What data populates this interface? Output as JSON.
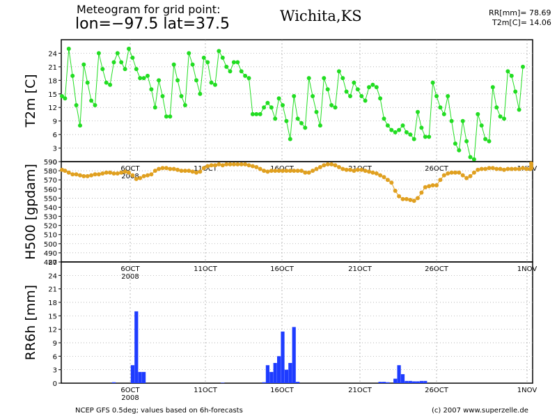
{
  "header": {
    "line1": "Meteogram for grid point:",
    "line2": "lon=−97.5  lat=37.5",
    "city": "Wichita,KS",
    "rr_total": "RR[mm]= 78.69",
    "t2m_mean": "T2m[C]= 14.06"
  },
  "footer": {
    "source": "NCEP GFS 0.5deg; values based on 6h-forecasts",
    "copyright": "(c) 2007 www.superzelle.de"
  },
  "colors": {
    "temperature": "#22dd22",
    "geopotential": "#e0a020",
    "precipitation": "#1e3cff",
    "frame": "#000000",
    "grid": "#9a9a9a"
  },
  "chart_data": [
    {
      "type": "line",
      "ylabel": "T2m [C]",
      "ylim": [
        0,
        27
      ],
      "yticks": [
        0,
        3,
        6,
        9,
        12,
        15,
        18,
        21,
        24
      ],
      "x_start": "2008-10-01 12UTC",
      "x_step_hours": 6,
      "date_ticks": [
        "6OCT",
        "11OCT",
        "16OCT",
        "21OCT",
        "26OCT",
        "1NOV"
      ],
      "year_label": "2008",
      "grid": true,
      "series": [
        {
          "values": [
            14.5,
            14,
            25,
            19,
            12.5,
            8,
            21.5,
            17.5,
            13.5,
            12.5,
            24,
            20.5,
            17.5,
            17,
            22,
            24,
            22,
            20.5,
            25,
            23,
            20.5,
            18.5,
            18.5,
            19,
            16,
            12,
            18,
            14.5,
            10,
            10,
            21.5,
            18,
            14.5,
            12.5,
            24,
            21.5,
            18,
            15,
            23,
            22,
            17.5,
            17,
            24.5,
            23,
            21,
            20,
            22,
            22,
            20,
            19,
            18.5,
            10.5,
            10.5,
            10.5,
            12,
            13,
            12,
            9.5,
            14,
            12.5,
            9,
            5,
            14.5,
            9.5,
            8.5,
            7.5,
            18.5,
            14.5,
            11,
            8,
            18.5,
            16,
            12.5,
            12,
            20,
            18.5,
            15.5,
            14.5,
            17.5,
            16,
            14.5,
            13.5,
            16.5,
            17,
            16.5,
            14,
            9.5,
            8,
            7,
            6.5,
            7,
            8,
            6.5,
            6,
            5,
            11,
            7.5,
            5.5,
            5.5,
            17.5,
            14.5,
            12,
            10.5,
            14.5,
            9,
            4,
            2.5,
            9,
            4.5,
            1,
            0.5,
            10.5,
            8,
            5,
            4.5,
            16.5,
            12,
            10,
            9.5,
            20,
            19,
            15.5,
            11.5,
            21
          ]
        }
      ]
    },
    {
      "type": "line",
      "ylabel": "H500 [gpdam]",
      "ylim": [
        480,
        590
      ],
      "yticks": [
        480,
        490,
        500,
        510,
        520,
        530,
        540,
        550,
        560,
        570,
        580,
        590
      ],
      "date_ticks": [
        "6OCT",
        "11OCT",
        "16OCT",
        "21OCT",
        "26OCT",
        "1NOV"
      ],
      "year_label": "2008",
      "grid": true,
      "series": [
        {
          "values": [
            581,
            580,
            578,
            576,
            576,
            575,
            574,
            574,
            575,
            576,
            576,
            577,
            578,
            578,
            577,
            577,
            578,
            579,
            578,
            575,
            571,
            572,
            574,
            575,
            576,
            580,
            582,
            583,
            583,
            582,
            582,
            581,
            580,
            580,
            580,
            579,
            578,
            579,
            583,
            585,
            586,
            586,
            587,
            586,
            587,
            587,
            587,
            587,
            587,
            587,
            586,
            585,
            584,
            582,
            580,
            579,
            580,
            580,
            580,
            580,
            580,
            580,
            580,
            580,
            580,
            578,
            578,
            580,
            582,
            584,
            586,
            587,
            587,
            586,
            584,
            582,
            581,
            581,
            580,
            581,
            581,
            580,
            579,
            578,
            577,
            575,
            573,
            570,
            567,
            558,
            552,
            549,
            549,
            548,
            547,
            550,
            556,
            562,
            563,
            564,
            564,
            570,
            575,
            577,
            578,
            578,
            578,
            575,
            572,
            574,
            578,
            581,
            582,
            582,
            583,
            583,
            582,
            582,
            581,
            582,
            582,
            582,
            582,
            583,
            582,
            582,
            583,
            583,
            585,
            588
          ]
        }
      ]
    },
    {
      "type": "bar",
      "ylabel": "RR6h [mm]",
      "ylim": [
        0,
        27
      ],
      "yticks": [
        0,
        3,
        6,
        9,
        12,
        15,
        18,
        21,
        24,
        27
      ],
      "date_ticks": [
        "6OCT",
        "11OCT",
        "16OCT",
        "21OCT",
        "26OCT",
        "1NOV"
      ],
      "year_label": "2008",
      "grid": true,
      "values": [
        0,
        0,
        0,
        0,
        0,
        0,
        0,
        0,
        0,
        0,
        0,
        0,
        0,
        0,
        0.2,
        0,
        0,
        0,
        0,
        4,
        16,
        2.5,
        2.5,
        0,
        0,
        0,
        0,
        0,
        0,
        0,
        0,
        0,
        0,
        0,
        0,
        0,
        0,
        0,
        0,
        0,
        0,
        0,
        0,
        0.1,
        0,
        0,
        0,
        0,
        0,
        0,
        0,
        0,
        0,
        0,
        0.2,
        4,
        2.5,
        4.5,
        6,
        11.5,
        3,
        4.5,
        12.5,
        0.3,
        0,
        0,
        0,
        0,
        0,
        0,
        0,
        0,
        0,
        0,
        0,
        0,
        0,
        0,
        0,
        0,
        0,
        0,
        0,
        0,
        0,
        0.3,
        0.3,
        0.2,
        0,
        1,
        4,
        2,
        0.5,
        0.5,
        0.4,
        0.4,
        0.5,
        0.5,
        0,
        0,
        0,
        0,
        0,
        0,
        0,
        0,
        0,
        0,
        0,
        0,
        0,
        0,
        0,
        0,
        0,
        0,
        0,
        0,
        0,
        0,
        0,
        0,
        0,
        0,
        0,
        0,
        0,
        0,
        0,
        0
      ]
    }
  ]
}
